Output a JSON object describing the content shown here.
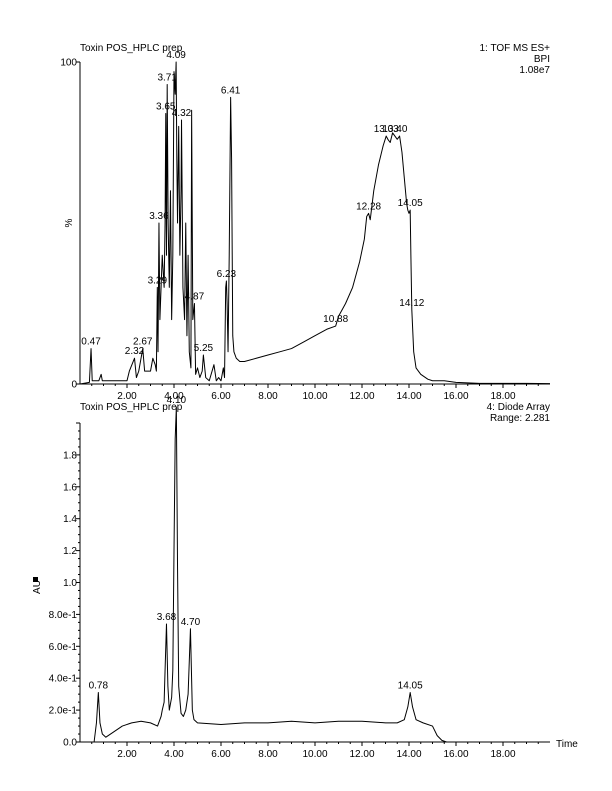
{
  "chart_data": [
    {
      "type": "line",
      "title": "Toxin POS_HPLC prep",
      "detector": "1: TOF MS ES+",
      "trace": "BPI",
      "intensity": "1.08e7",
      "ylabel": "%",
      "xlim": [
        0,
        20
      ],
      "ylim": [
        0,
        100
      ],
      "x_ticks": [
        "2.00",
        "4.00",
        "6.00",
        "8.00",
        "10.00",
        "12.00",
        "14.00",
        "16.00",
        "18.00"
      ],
      "y_ticks": [
        "0",
        "100"
      ],
      "grid": false,
      "peaks": [
        {
          "x": 0.47,
          "y": 11,
          "label": "0.47"
        },
        {
          "x": 2.32,
          "y": 8,
          "label": "2.32"
        },
        {
          "x": 2.67,
          "y": 11,
          "label": "2.67"
        },
        {
          "x": 3.29,
          "y": 30,
          "label": "3.29"
        },
        {
          "x": 3.36,
          "y": 50,
          "label": "3.36"
        },
        {
          "x": 3.65,
          "y": 84,
          "label": "3.65"
        },
        {
          "x": 3.71,
          "y": 93,
          "label": "3.71"
        },
        {
          "x": 4.09,
          "y": 100,
          "label": "4.09"
        },
        {
          "x": 4.32,
          "y": 82,
          "label": "4.32"
        },
        {
          "x": 4.87,
          "y": 25,
          "label": "4.87"
        },
        {
          "x": 5.25,
          "y": 9,
          "label": "5.25"
        },
        {
          "x": 6.23,
          "y": 32,
          "label": "6.23"
        },
        {
          "x": 6.41,
          "y": 89,
          "label": "6.41"
        },
        {
          "x": 10.88,
          "y": 18,
          "label": "10.88"
        },
        {
          "x": 12.28,
          "y": 53,
          "label": "12.28"
        },
        {
          "x": 13.03,
          "y": 77,
          "label": "13.03"
        },
        {
          "x": 13.4,
          "y": 77,
          "label": "13.40"
        },
        {
          "x": 14.05,
          "y": 54,
          "label": "14.05"
        },
        {
          "x": 14.12,
          "y": 23,
          "label": "14.12"
        }
      ],
      "series": [
        {
          "x": [
            0.0,
            0.4,
            0.47,
            0.52,
            0.8,
            0.9,
            0.95,
            1.5,
            2.0,
            2.1,
            2.32,
            2.4,
            2.5,
            2.67,
            2.75,
            3.0,
            3.1,
            3.2,
            3.25,
            3.29,
            3.32,
            3.36,
            3.4,
            3.5,
            3.58,
            3.62,
            3.65,
            3.68,
            3.71,
            3.75,
            3.8,
            3.85,
            3.9,
            3.95,
            4.0,
            4.05,
            4.09,
            4.12,
            4.15,
            4.2,
            4.25,
            4.3,
            4.32,
            4.38,
            4.45,
            4.5,
            4.55,
            4.6,
            4.65,
            4.72,
            4.75,
            4.8,
            4.87,
            4.92,
            5.0,
            5.1,
            5.2,
            5.25,
            5.35,
            5.5,
            5.7,
            5.8,
            5.9,
            6.0,
            6.1,
            6.15,
            6.2,
            6.23,
            6.26,
            6.3,
            6.35,
            6.41,
            6.45,
            6.5,
            6.55,
            6.65,
            6.8,
            7.0,
            7.5,
            8.0,
            8.5,
            9.0,
            9.5,
            10.0,
            10.5,
            10.88,
            11.0,
            11.3,
            11.6,
            11.9,
            12.1,
            12.2,
            12.28,
            12.35,
            12.5,
            12.7,
            12.9,
            13.03,
            13.1,
            13.2,
            13.3,
            13.4,
            13.5,
            13.6,
            13.7,
            13.8,
            13.9,
            13.95,
            14.0,
            14.05,
            14.08,
            14.12,
            14.2,
            14.3,
            14.5,
            14.8,
            15.0,
            15.5,
            16.0,
            17.0,
            18.0,
            19.0,
            20.0
          ],
          "y": [
            0,
            0.5,
            11,
            1,
            1,
            3,
            1,
            1,
            1,
            4,
            8,
            2,
            4,
            11,
            4,
            4,
            8,
            6,
            4,
            30,
            10,
            50,
            20,
            40,
            30,
            50,
            84,
            40,
            93,
            50,
            30,
            60,
            20,
            40,
            97,
            90,
            100,
            70,
            50,
            80,
            40,
            60,
            82,
            30,
            20,
            50,
            15,
            40,
            10,
            5,
            85,
            20,
            25,
            3,
            5,
            2,
            4,
            9,
            2,
            1,
            6,
            1,
            2,
            1,
            5,
            2,
            30,
            32,
            25,
            10,
            40,
            89,
            70,
            15,
            10,
            8,
            7,
            7,
            8,
            9,
            10,
            11,
            13,
            15,
            17,
            18,
            21,
            25,
            30,
            38,
            45,
            52,
            53,
            51,
            60,
            68,
            74,
            77,
            76,
            75,
            78,
            77,
            76,
            77,
            72,
            64,
            56,
            54,
            53,
            54,
            40,
            23,
            10,
            5,
            3,
            1.5,
            1,
            1,
            0.5,
            0.2,
            0.2,
            0.2,
            0.1
          ]
        }
      ]
    },
    {
      "type": "line",
      "title": "Toxin POS_HPLC prep",
      "detector": "4: Diode Array",
      "range": "Range: 2.281",
      "ylabel": "AU",
      "xlabel": "Time",
      "xlim": [
        0,
        20
      ],
      "ylim": [
        0,
        2.0
      ],
      "x_ticks": [
        "2.00",
        "4.00",
        "6.00",
        "8.00",
        "10.00",
        "12.00",
        "14.00",
        "16.00",
        "18.00"
      ],
      "y_ticks": [
        "0.0",
        "2.0e-1",
        "4.0e-1",
        "6.0e-1",
        "8.0e-1",
        "1.0",
        "1.2",
        "1.4",
        "1.6",
        "1.8"
      ],
      "grid": false,
      "peaks": [
        {
          "x": 0.78,
          "y": 0.31,
          "label": "0.78"
        },
        {
          "x": 3.68,
          "y": 0.74,
          "label": "3.68"
        },
        {
          "x": 4.1,
          "y": 2.1,
          "label": "4.10"
        },
        {
          "x": 4.7,
          "y": 0.71,
          "label": "4.70"
        },
        {
          "x": 14.05,
          "y": 0.31,
          "label": "14.05"
        }
      ],
      "series": [
        {
          "x": [
            0.0,
            0.3,
            0.6,
            0.7,
            0.78,
            0.85,
            0.95,
            1.1,
            1.4,
            1.8,
            2.2,
            2.6,
            3.0,
            3.3,
            3.45,
            3.5,
            3.58,
            3.62,
            3.68,
            3.74,
            3.8,
            3.9,
            3.95,
            4.0,
            4.05,
            4.1,
            4.15,
            4.2,
            4.3,
            4.4,
            4.5,
            4.6,
            4.7,
            4.78,
            4.85,
            5.0,
            6.0,
            7.0,
            8.0,
            9.0,
            10.0,
            11.0,
            12.0,
            13.0,
            13.5,
            13.8,
            13.95,
            14.05,
            14.15,
            14.3,
            14.6,
            15.0,
            15.2,
            15.4,
            15.6,
            16.0,
            17.0,
            18.0,
            19.0,
            20.0
          ],
          "y": [
            0.0,
            0.0,
            0.0,
            0.12,
            0.31,
            0.12,
            0.05,
            0.03,
            0.06,
            0.1,
            0.12,
            0.13,
            0.12,
            0.1,
            0.16,
            0.2,
            0.25,
            0.45,
            0.74,
            0.35,
            0.2,
            0.28,
            0.45,
            1.2,
            1.9,
            2.1,
            1.1,
            0.35,
            0.18,
            0.16,
            0.2,
            0.3,
            0.71,
            0.2,
            0.14,
            0.12,
            0.11,
            0.12,
            0.12,
            0.13,
            0.12,
            0.13,
            0.13,
            0.12,
            0.12,
            0.14,
            0.22,
            0.31,
            0.22,
            0.14,
            0.12,
            0.1,
            0.04,
            0.01,
            0.0,
            0.0,
            0.0,
            0.0,
            0.0,
            0.0
          ]
        }
      ]
    }
  ]
}
